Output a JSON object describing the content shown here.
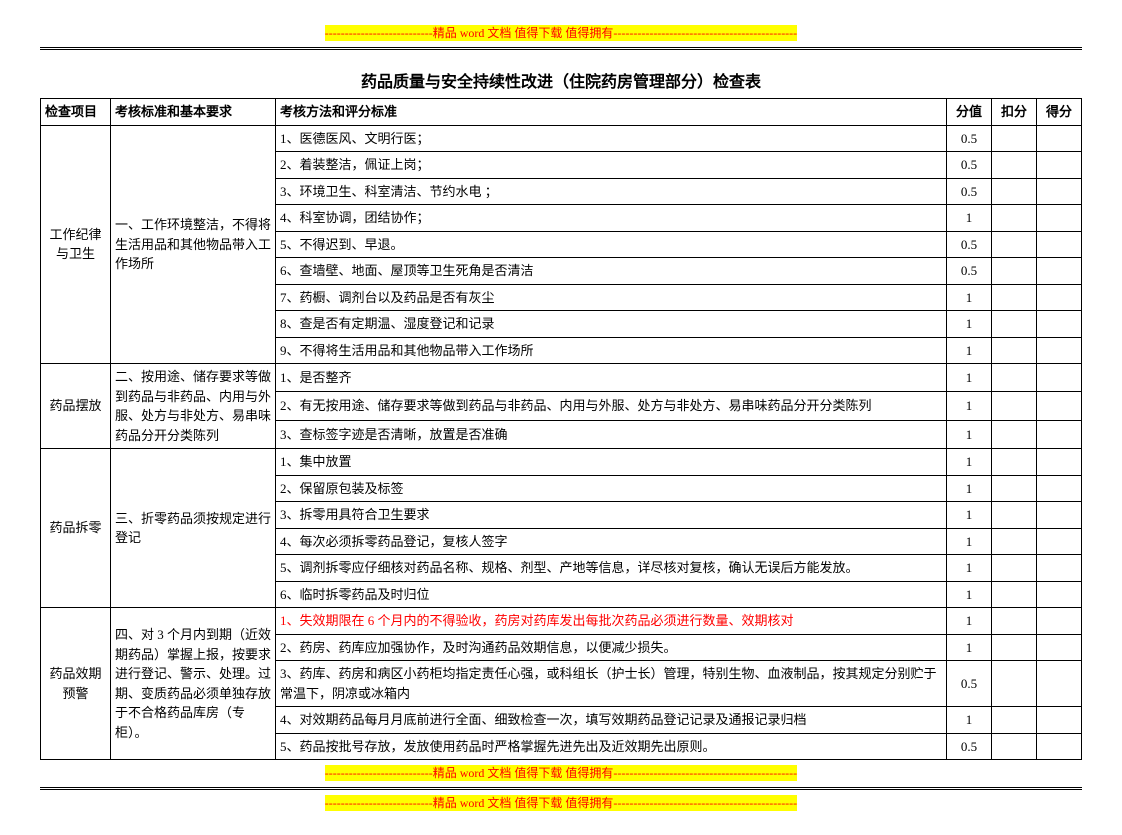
{
  "banner_text": "---------------------------精品 word 文档 值得下载 值得拥有----------------------------------------------",
  "title": "药品质量与安全持续性改进（住院药房管理部分）检查表",
  "headers": {
    "c1": "检查项目",
    "c2": "考核标准和基本要求",
    "c3": "考核方法和评分标准",
    "c4": "分值",
    "c5": "扣分",
    "c6": "得分"
  },
  "sections": [
    {
      "item": "工作纪律与卫生",
      "standard": "一、工作环境整洁，不得将生活用品和其他物品带入工作场所",
      "rows": [
        {
          "text": "1、医德医风、文明行医；",
          "score": "0.5"
        },
        {
          "text": "2、着装整洁，佩证上岗；",
          "score": "0.5"
        },
        {
          "text": "3、环境卫生、科室清洁、节约水电 ；",
          "score": "0.5"
        },
        {
          "text": "4、科室协调，团结协作；",
          "score": "1"
        },
        {
          "text": "5、不得迟到、早退。",
          "score": "0.5"
        },
        {
          "text": "6、查墙壁、地面、屋顶等卫生死角是否清洁",
          "score": "0.5"
        },
        {
          "text": "7、药橱、调剂台以及药品是否有灰尘",
          "score": "1"
        },
        {
          "text": "8、查是否有定期温、湿度登记和记录",
          "score": "1"
        },
        {
          "text": "9、不得将生活用品和其他物品带入工作场所",
          "score": "1"
        }
      ]
    },
    {
      "item": "药品摆放",
      "standard": "二、按用途、储存要求等做到药品与非药品、内用与外服、处方与非处方、易串味药品分开分类陈列",
      "rows": [
        {
          "text": "1、是否整齐",
          "score": "1"
        },
        {
          "text": "2、有无按用途、储存要求等做到药品与非药品、内用与外服、处方与非处方、易串味药品分开分类陈列",
          "score": "1"
        },
        {
          "text": "3、查标签字迹是否清晰，放置是否准确",
          "score": "1"
        }
      ]
    },
    {
      "item": "药品拆零",
      "standard": "三、折零药品须按规定进行登记",
      "rows": [
        {
          "text": "1、集中放置",
          "score": "1"
        },
        {
          "text": "2、保留原包装及标签",
          "score": "1"
        },
        {
          "text": "3、拆零用具符合卫生要求",
          "score": "1"
        },
        {
          "text": "4、每次必须拆零药品登记，复核人签字",
          "score": "1"
        },
        {
          "text": "5、调剂拆零应仔细核对药品名称、规格、剂型、产地等信息，详尽核对复核，确认无误后方能发放。",
          "score": "1"
        },
        {
          "text": "6、临时拆零药品及时归位",
          "score": "1"
        }
      ]
    },
    {
      "item": "药品效期预警",
      "standard": "四、对 3 个月内到期（近效期药品）掌握上报，按要求进行登记、警示、处理。过期、变质药品必须单独存放于不合格药品库房（专柜）。",
      "rows": [
        {
          "text": "1、失效期限在 6 个月内的不得验收，药房对药库发出每批次药品必须进行数量、效期核对",
          "score": "1",
          "red": true
        },
        {
          "text": "2、药房、药库应加强协作，及时沟通药品效期信息，以便减少损失。",
          "score": "1"
        },
        {
          "text": "3、药库、药房和病区小药柜均指定责任心强，或科组长（护士长）管理，特别生物、血液制品，按其规定分别贮于常温下，阴凉或冰箱内",
          "score": "0.5"
        },
        {
          "text": "4、对效期药品每月月底前进行全面、细致检查一次，填写效期药品登记记录及通报记录归档",
          "score": "1"
        },
        {
          "text": "5、药品按批号存放，发放使用药品时严格掌握先进先出及近效期先出原则。",
          "score": "0.5"
        }
      ]
    }
  ]
}
